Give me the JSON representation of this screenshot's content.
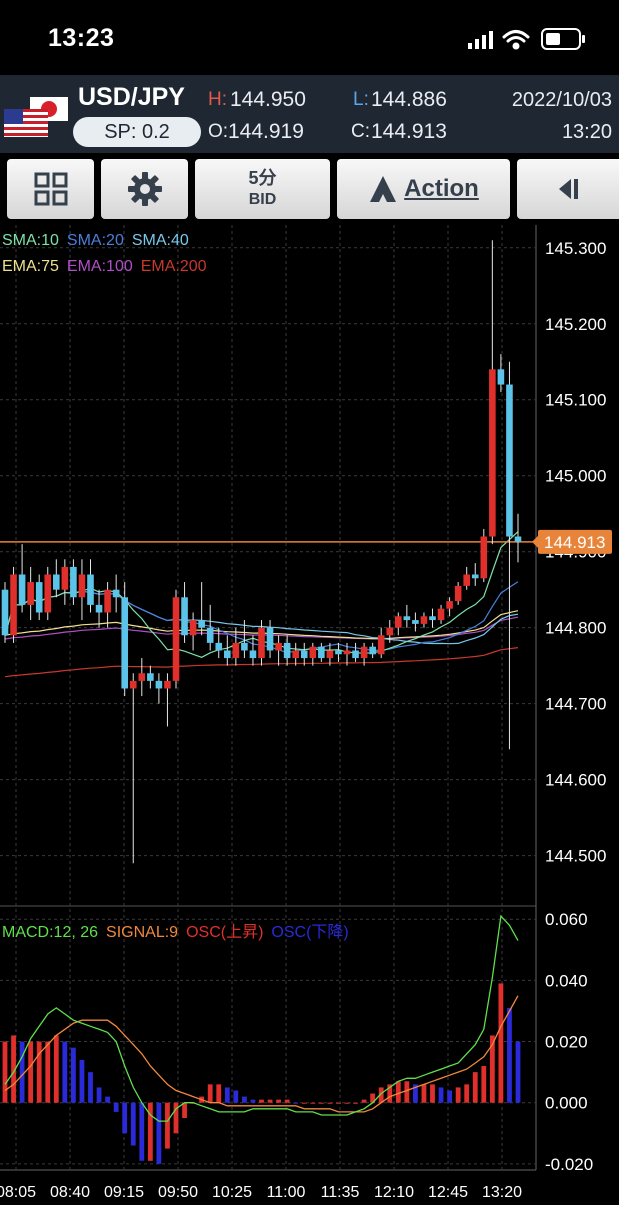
{
  "status_bar": {
    "time": "13:23"
  },
  "header": {
    "pair": "USD/JPY",
    "spread": "SP: 0.2",
    "high_label": "H:",
    "high": "144.950",
    "low_label": "L:",
    "low": "144.886",
    "open_label": "O:",
    "open": "144.919",
    "close_label": "C:",
    "close": "144.913",
    "date": "2022/10/03",
    "time": "13:20"
  },
  "toolbar": {
    "timeframe": "5分",
    "price_type": "BID",
    "action_label": "Action"
  },
  "legend": {
    "sma": [
      "SMA:10",
      "SMA:20",
      "SMA:40"
    ],
    "ema": [
      "EMA:75",
      "EMA:100",
      "EMA:200"
    ],
    "macd": "MACD:12, 26",
    "signal": "SIGNAL:9",
    "osc_up": "OSC(上昇)",
    "osc_down": "OSC(下降)"
  },
  "colors": {
    "up": "#e0302b",
    "down": "#5bc4e8",
    "sma10": "#7ee0a8",
    "sma20": "#4b7fdc",
    "sma40": "#78c8ea",
    "ema75": "#efe08e",
    "ema100": "#b04fc8",
    "ema200": "#c8382c",
    "current_line": "#e7843a",
    "macd": "#5fe04b",
    "signal": "#f0883e",
    "osc_up": "#e0302b",
    "osc_down": "#2a2ad8"
  },
  "chart_data": {
    "type": "candlestick",
    "current_price": "144.913",
    "price_ticks": [
      "145.300",
      "145.200",
      "145.100",
      "145.000",
      "144.900",
      "144.800",
      "144.700",
      "144.600",
      "144.500"
    ],
    "ylim": [
      144.435,
      145.33
    ],
    "macd_ticks": [
      "0.060",
      "0.040",
      "0.020",
      "0.000",
      "-0.020"
    ],
    "macd_ylim": [
      -0.022,
      0.064
    ],
    "time_labels": [
      "08:05",
      "08:40",
      "09:15",
      "09:50",
      "10:25",
      "11:00",
      "11:35",
      "12:10",
      "12:45",
      "13:20"
    ],
    "candles": [
      [
        144.85,
        144.86,
        144.78,
        144.79
      ],
      [
        144.79,
        144.88,
        144.78,
        144.87
      ],
      [
        144.87,
        144.91,
        144.82,
        144.83
      ],
      [
        144.83,
        144.88,
        144.81,
        144.86
      ],
      [
        144.86,
        144.87,
        144.81,
        144.82
      ],
      [
        144.82,
        144.88,
        144.81,
        144.87
      ],
      [
        144.87,
        144.89,
        144.84,
        144.85
      ],
      [
        144.85,
        144.89,
        144.83,
        144.88
      ],
      [
        144.88,
        144.89,
        144.83,
        144.84
      ],
      [
        144.84,
        144.89,
        144.81,
        144.87
      ],
      [
        144.87,
        144.89,
        144.82,
        144.83
      ],
      [
        144.83,
        144.85,
        144.8,
        144.82
      ],
      [
        144.82,
        144.86,
        144.8,
        144.85
      ],
      [
        144.85,
        144.87,
        144.82,
        144.84
      ],
      [
        144.84,
        144.86,
        144.71,
        144.72
      ],
      [
        144.72,
        144.74,
        144.49,
        144.73
      ],
      [
        144.73,
        144.76,
        144.71,
        144.74
      ],
      [
        144.74,
        144.75,
        144.72,
        144.73
      ],
      [
        144.73,
        144.74,
        144.7,
        144.72
      ],
      [
        144.72,
        144.74,
        144.67,
        144.73
      ],
      [
        144.73,
        144.85,
        144.72,
        144.84
      ],
      [
        144.84,
        144.86,
        144.78,
        144.79
      ],
      [
        144.79,
        144.82,
        144.77,
        144.81
      ],
      [
        144.81,
        144.86,
        144.79,
        144.8
      ],
      [
        144.8,
        144.83,
        144.77,
        144.78
      ],
      [
        144.78,
        144.8,
        144.76,
        144.77
      ],
      [
        144.77,
        144.79,
        144.75,
        144.76
      ],
      [
        144.76,
        144.8,
        144.75,
        144.78
      ],
      [
        144.78,
        144.81,
        144.76,
        144.77
      ],
      [
        144.77,
        144.79,
        144.75,
        144.76
      ],
      [
        144.76,
        144.81,
        144.75,
        144.8
      ],
      [
        144.8,
        144.81,
        144.76,
        144.77
      ],
      [
        144.77,
        144.79,
        144.75,
        144.78
      ],
      [
        144.78,
        144.79,
        144.75,
        144.76
      ],
      [
        144.76,
        144.78,
        144.75,
        144.77
      ],
      [
        144.77,
        144.78,
        144.75,
        144.76
      ],
      [
        144.76,
        144.78,
        144.75,
        144.775
      ],
      [
        144.775,
        144.78,
        144.755,
        144.76
      ],
      [
        144.76,
        144.78,
        144.75,
        144.77
      ],
      [
        144.77,
        144.78,
        144.755,
        144.765
      ],
      [
        144.765,
        144.78,
        144.75,
        144.77
      ],
      [
        144.77,
        144.78,
        144.755,
        144.76
      ],
      [
        144.76,
        144.78,
        144.75,
        144.775
      ],
      [
        144.775,
        144.78,
        144.76,
        144.765
      ],
      [
        144.765,
        144.8,
        144.76,
        144.79
      ],
      [
        144.79,
        144.81,
        144.78,
        144.8
      ],
      [
        144.8,
        144.82,
        144.79,
        144.815
      ],
      [
        144.815,
        144.83,
        144.8,
        144.81
      ],
      [
        144.81,
        144.82,
        144.795,
        144.805
      ],
      [
        144.805,
        144.82,
        144.8,
        144.815
      ],
      [
        144.815,
        144.825,
        144.8,
        144.81
      ],
      [
        144.81,
        144.83,
        144.805,
        144.825
      ],
      [
        144.825,
        144.84,
        144.815,
        144.835
      ],
      [
        144.835,
        144.86,
        144.83,
        144.855
      ],
      [
        144.855,
        144.88,
        144.85,
        144.87
      ],
      [
        144.87,
        144.885,
        144.855,
        144.865
      ],
      [
        144.865,
        144.93,
        144.86,
        144.92
      ],
      [
        144.92,
        145.31,
        144.91,
        145.14
      ],
      [
        145.14,
        145.16,
        145.11,
        145.12
      ],
      [
        145.12,
        145.15,
        144.64,
        144.92
      ],
      [
        144.92,
        144.95,
        144.886,
        144.913
      ]
    ],
    "macd_line": [
      0.006,
      0.01,
      0.015,
      0.021,
      0.025,
      0.029,
      0.031,
      0.029,
      0.027,
      0.026,
      0.025,
      0.024,
      0.023,
      0.02,
      0.012,
      0.005,
      0.0,
      -0.004,
      -0.006,
      -0.006,
      -0.002,
      0.0,
      0.0,
      -0.001,
      -0.002,
      -0.003,
      -0.003,
      -0.003,
      -0.003,
      -0.002,
      -0.002,
      -0.002,
      -0.002,
      -0.002,
      -0.003,
      -0.003,
      -0.003,
      -0.004,
      -0.004,
      -0.004,
      -0.004,
      -0.003,
      -0.002,
      0.0,
      0.003,
      0.005,
      0.007,
      0.008,
      0.008,
      0.009,
      0.01,
      0.011,
      0.012,
      0.013,
      0.016,
      0.019,
      0.024,
      0.041,
      0.061,
      0.058,
      0.053
    ],
    "signal_line": [
      0.004,
      0.006,
      0.009,
      0.012,
      0.016,
      0.019,
      0.022,
      0.024,
      0.026,
      0.027,
      0.027,
      0.027,
      0.027,
      0.025,
      0.022,
      0.019,
      0.016,
      0.012,
      0.009,
      0.006,
      0.004,
      0.003,
      0.002,
      0.001,
      0.0,
      0.0,
      -0.001,
      -0.001,
      -0.001,
      -0.001,
      -0.001,
      -0.001,
      -0.001,
      -0.001,
      -0.001,
      -0.002,
      -0.002,
      -0.002,
      -0.002,
      -0.003,
      -0.003,
      -0.003,
      -0.003,
      -0.002,
      0.0,
      0.002,
      0.003,
      0.004,
      0.005,
      0.006,
      0.007,
      0.008,
      0.009,
      0.01,
      0.011,
      0.013,
      0.015,
      0.019,
      0.025,
      0.03,
      0.035
    ],
    "osc": [
      0.02,
      0.022,
      0.02,
      0.02,
      0.02,
      0.02,
      0.022,
      0.02,
      0.018,
      0.014,
      0.01,
      0.005,
      0.002,
      -0.003,
      -0.01,
      -0.014,
      -0.019,
      -0.019,
      -0.02,
      -0.015,
      -0.01,
      -0.005,
      0.0,
      0.002,
      0.006,
      0.006,
      0.005,
      0.004,
      0.002,
      0.001,
      0.001,
      0.001,
      0.001,
      0.001,
      0.0,
      0.0,
      0.0,
      0.0,
      0.0,
      0.0,
      0.0,
      0.0,
      0.001,
      0.003,
      0.005,
      0.006,
      0.007,
      0.007,
      0.006,
      0.006,
      0.006,
      0.005,
      0.004,
      0.005,
      0.006,
      0.01,
      0.012,
      0.022,
      0.039,
      0.031,
      0.02
    ]
  }
}
